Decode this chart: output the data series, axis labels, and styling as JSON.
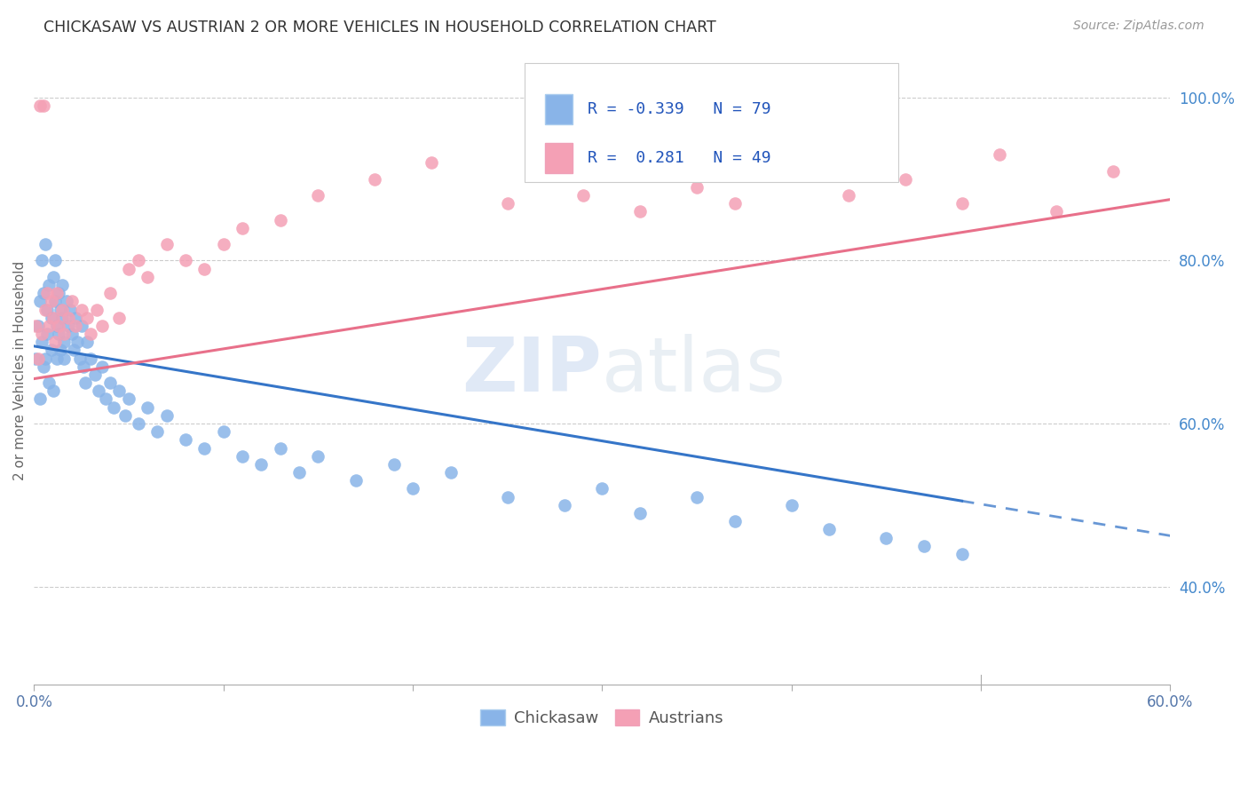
{
  "title": "CHICKASAW VS AUSTRIAN 2 OR MORE VEHICLES IN HOUSEHOLD CORRELATION CHART",
  "source": "Source: ZipAtlas.com",
  "ylabel": "2 or more Vehicles in Household",
  "xmin": 0.0,
  "xmax": 0.6,
  "ymin": 0.28,
  "ymax": 1.05,
  "chickasaw_color": "#89b4e8",
  "austrians_color": "#f4a0b5",
  "chickasaw_line_color": "#3575c8",
  "austrians_line_color": "#e8708a",
  "chickasaw_R": -0.339,
  "chickasaw_N": 79,
  "austrians_R": 0.281,
  "austrians_N": 49,
  "legend_label_chickasaw": "Chickasaw",
  "legend_label_austrians": "Austrians",
  "watermark": "ZIPatlas",
  "chickasaw_x": [
    0.001,
    0.002,
    0.003,
    0.003,
    0.004,
    0.004,
    0.005,
    0.005,
    0.006,
    0.006,
    0.007,
    0.007,
    0.008,
    0.008,
    0.009,
    0.009,
    0.01,
    0.01,
    0.011,
    0.011,
    0.012,
    0.012,
    0.013,
    0.013,
    0.014,
    0.014,
    0.015,
    0.015,
    0.016,
    0.016,
    0.017,
    0.018,
    0.019,
    0.02,
    0.021,
    0.022,
    0.023,
    0.024,
    0.025,
    0.026,
    0.027,
    0.028,
    0.03,
    0.032,
    0.034,
    0.036,
    0.038,
    0.04,
    0.042,
    0.045,
    0.048,
    0.05,
    0.055,
    0.06,
    0.065,
    0.07,
    0.08,
    0.09,
    0.1,
    0.11,
    0.12,
    0.13,
    0.14,
    0.15,
    0.17,
    0.19,
    0.2,
    0.22,
    0.25,
    0.28,
    0.3,
    0.32,
    0.35,
    0.37,
    0.4,
    0.42,
    0.45,
    0.47,
    0.49
  ],
  "chickasaw_y": [
    0.68,
    0.72,
    0.63,
    0.75,
    0.7,
    0.8,
    0.67,
    0.76,
    0.68,
    0.82,
    0.71,
    0.74,
    0.65,
    0.77,
    0.73,
    0.69,
    0.78,
    0.64,
    0.75,
    0.8,
    0.72,
    0.68,
    0.76,
    0.71,
    0.69,
    0.74,
    0.73,
    0.77,
    0.7,
    0.68,
    0.75,
    0.72,
    0.74,
    0.71,
    0.69,
    0.73,
    0.7,
    0.68,
    0.72,
    0.67,
    0.65,
    0.7,
    0.68,
    0.66,
    0.64,
    0.67,
    0.63,
    0.65,
    0.62,
    0.64,
    0.61,
    0.63,
    0.6,
    0.62,
    0.59,
    0.61,
    0.58,
    0.57,
    0.59,
    0.56,
    0.55,
    0.57,
    0.54,
    0.56,
    0.53,
    0.55,
    0.52,
    0.54,
    0.51,
    0.5,
    0.52,
    0.49,
    0.51,
    0.48,
    0.5,
    0.47,
    0.46,
    0.45,
    0.44
  ],
  "austrians_x": [
    0.001,
    0.002,
    0.003,
    0.004,
    0.005,
    0.006,
    0.007,
    0.008,
    0.009,
    0.01,
    0.011,
    0.012,
    0.013,
    0.015,
    0.016,
    0.018,
    0.02,
    0.022,
    0.025,
    0.028,
    0.03,
    0.033,
    0.036,
    0.04,
    0.045,
    0.05,
    0.055,
    0.06,
    0.07,
    0.08,
    0.09,
    0.1,
    0.11,
    0.13,
    0.15,
    0.18,
    0.21,
    0.25,
    0.29,
    0.32,
    0.35,
    0.37,
    0.4,
    0.43,
    0.46,
    0.49,
    0.51,
    0.54,
    0.57
  ],
  "austrians_y": [
    0.72,
    0.68,
    0.99,
    0.71,
    0.99,
    0.74,
    0.76,
    0.72,
    0.75,
    0.73,
    0.7,
    0.76,
    0.72,
    0.74,
    0.71,
    0.73,
    0.75,
    0.72,
    0.74,
    0.73,
    0.71,
    0.74,
    0.72,
    0.76,
    0.73,
    0.79,
    0.8,
    0.78,
    0.82,
    0.8,
    0.79,
    0.82,
    0.84,
    0.85,
    0.88,
    0.9,
    0.92,
    0.87,
    0.88,
    0.86,
    0.89,
    0.87,
    0.91,
    0.88,
    0.9,
    0.87,
    0.93,
    0.86,
    0.91
  ],
  "chick_line_x0": 0.0,
  "chick_line_x1": 0.49,
  "chick_line_y0": 0.695,
  "chick_line_y1": 0.505,
  "aust_line_x0": 0.0,
  "aust_line_x1": 0.6,
  "aust_line_y0": 0.655,
  "aust_line_y1": 0.875
}
